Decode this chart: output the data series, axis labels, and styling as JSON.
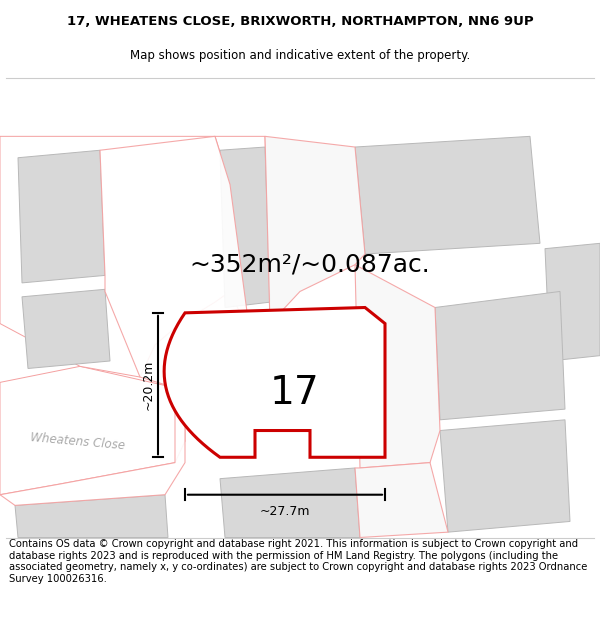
{
  "title_line1": "17, WHEATENS CLOSE, BRIXWORTH, NORTHAMPTON, NN6 9UP",
  "title_line2": "Map shows position and indicative extent of the property.",
  "area_label": "~352m²/~0.087ac.",
  "plot_number": "17",
  "dim_width": "~27.7m",
  "dim_height": "~20.2m",
  "road_label": "Wheatens Close",
  "footer_text": "Contains OS data © Crown copyright and database right 2021. This information is subject to Crown copyright and database rights 2023 and is reproduced with the permission of HM Land Registry. The polygons (including the associated geometry, namely x, y co-ordinates) are subject to Crown copyright and database rights 2023 Ordnance Survey 100026316.",
  "bg_color": "#f2f2f2",
  "building_fill": "#d8d8d8",
  "building_edge": "#b8b8b8",
  "plot_edge": "#cc0000",
  "other_plot_edge": "#f4a0a0",
  "road_label_color": "#aaaaaa",
  "title_fontsize": 9.5,
  "subtitle_fontsize": 8.5,
  "footer_fontsize": 7.2,
  "area_fontsize": 18,
  "number_fontsize": 28,
  "dim_fontsize": 9
}
